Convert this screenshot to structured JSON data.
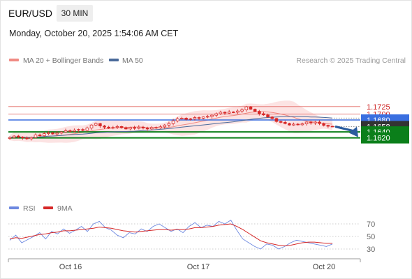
{
  "header": {
    "symbol": "EUR/USD",
    "timeframe": "30 MIN",
    "datetime": "Monday, October 20, 2025 1:54:06 AM CET"
  },
  "legend": {
    "bollinger_label": "MA 20 + Bollinger Bands",
    "ma50_label": "MA 50",
    "credit": "Research © 2025 Trading Central",
    "rsi_label": "RSI",
    "rsi_ma_label": "9MA"
  },
  "colors": {
    "candle": "#d62828",
    "bollinger": "#f08b84",
    "bollinger_fill": "#fcdede",
    "ma50": "#4a6a9a",
    "resistance_line": "#e36a66",
    "resistance_text": "#cc1f1f",
    "pivot": "#3a6fe0",
    "support": "#0b7f1a",
    "last_price": "#333333",
    "arrow": "#2b5c9e",
    "rsi": "#6d88e0",
    "rsi_ma": "#d62828"
  },
  "chart_data": [
    {
      "type": "candlestick",
      "title": "EUR/USD",
      "x": [
        "Oct 16",
        "Oct 17",
        "Oct 20"
      ],
      "ylim": [
        1.16,
        1.174
      ],
      "levels": [
        {
          "label": "1.1725",
          "value": 1.1725,
          "kind": "resistance"
        },
        {
          "label": "1.1700",
          "value": 1.17,
          "kind": "resistance"
        },
        {
          "label": "1.1680",
          "value": 1.168,
          "kind": "pivot"
        },
        {
          "label": "1.1658",
          "value": 1.1658,
          "kind": "last"
        },
        {
          "label": "1.1640",
          "value": 1.164,
          "kind": "support"
        },
        {
          "label": "1.1620",
          "value": 1.162,
          "kind": "support"
        }
      ],
      "series": [
        {
          "name": "MA 20 + Bollinger Bands",
          "kind": "bollinger"
        },
        {
          "name": "MA 50",
          "kind": "ma"
        }
      ],
      "forecast": {
        "from": 1.1658,
        "to": 1.162,
        "direction": "down"
      },
      "path": [
        1.1621,
        1.1626,
        1.1623,
        1.162,
        1.1617,
        1.1621,
        1.163,
        1.1627,
        1.1634,
        1.1637,
        1.1633,
        1.1636,
        1.164,
        1.1644,
        1.1642,
        1.1646,
        1.1648,
        1.1645,
        1.1653,
        1.1663,
        1.1668,
        1.166,
        1.1656,
        1.1653,
        1.1655,
        1.1658,
        1.1654,
        1.165,
        1.1655,
        1.1652,
        1.1656,
        1.1653,
        1.165,
        1.1655,
        1.1653,
        1.1657,
        1.1663,
        1.1668,
        1.1677,
        1.1684,
        1.1686,
        1.1682,
        1.1684,
        1.1688,
        1.1686,
        1.169,
        1.1692,
        1.1696,
        1.1701,
        1.1706,
        1.1703,
        1.1707,
        1.1706,
        1.171,
        1.1714,
        1.1724,
        1.1716,
        1.1709,
        1.1701,
        1.1697,
        1.169,
        1.1685,
        1.1675,
        1.1672,
        1.1668,
        1.1663,
        1.1666,
        1.1664,
        1.1667,
        1.1673,
        1.167,
        1.1673,
        1.1668,
        1.1662,
        1.1659,
        1.1658
      ]
    },
    {
      "type": "line",
      "title": "RSI",
      "ylim": [
        20,
        80
      ],
      "y_ticks": [
        "70",
        "50",
        "30"
      ],
      "series": [
        {
          "name": "RSI",
          "values": [
            44,
            52,
            40,
            45,
            50,
            56,
            46,
            58,
            54,
            62,
            55,
            60,
            66,
            58,
            70,
            74,
            64,
            60,
            52,
            48,
            56,
            54,
            62,
            58,
            66,
            70,
            64,
            58,
            62,
            56,
            66,
            72,
            64,
            68,
            66,
            74,
            70,
            76,
            60,
            46,
            40,
            34,
            30,
            38,
            36,
            30,
            34,
            40,
            44,
            42,
            40,
            38,
            36,
            34,
            38
          ]
        },
        {
          "name": "9MA",
          "values": [
            46,
            48,
            47,
            49,
            51,
            53,
            54,
            56,
            57,
            59,
            59,
            60,
            61,
            62,
            63,
            65,
            64,
            63,
            61,
            59,
            58,
            57,
            58,
            59,
            60,
            61,
            61,
            60,
            61,
            61,
            62,
            64,
            64,
            65,
            66,
            68,
            69,
            70,
            66,
            61,
            55,
            49,
            43,
            40,
            38,
            36,
            35,
            36,
            38,
            40,
            41,
            41,
            40,
            39,
            39
          ]
        }
      ]
    }
  ]
}
